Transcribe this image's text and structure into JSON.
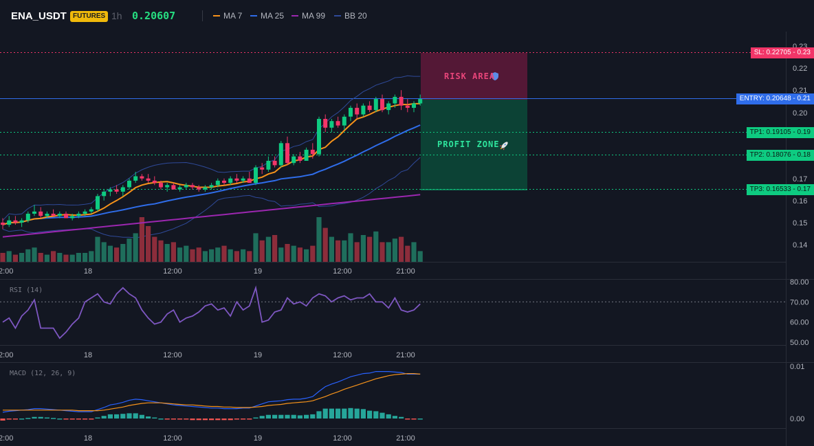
{
  "header": {
    "symbol": "ENA_USDT",
    "badge": "FUTURES",
    "timeframe": "1h",
    "last_price": "0.20607",
    "indicators": [
      {
        "label": "MA 7",
        "color": "#f7931a"
      },
      {
        "label": "MA 25",
        "color": "#2f6dea"
      },
      {
        "label": "MA 99",
        "color": "#9c27b0"
      },
      {
        "label": "BB 20",
        "color": "#2f4a9a"
      }
    ]
  },
  "zones": {
    "risk_label": "RISK AREA",
    "profit_label": "PROFIT ZONE",
    "risk_icon": "shield-icon",
    "profit_icon": "rocket-icon"
  },
  "levels": [
    {
      "label": "SL: 0.22705 - 0.23",
      "value": 0.22705,
      "color": "#f23568",
      "line_style": "dotted"
    },
    {
      "label": "ENTRY: 0.20648 - 0.21",
      "value": 0.20648,
      "color": "#2f6dea",
      "line_style": "solid"
    },
    {
      "label": "TP1: 0.19105 - 0.19",
      "value": 0.19105,
      "color": "#0ecb81",
      "line_style": "dotted"
    },
    {
      "label": "TP2: 0.18076 - 0.18",
      "value": 0.18076,
      "color": "#0ecb81",
      "line_style": "dotted"
    },
    {
      "label": "TP3: 0.16533 - 0.17",
      "value": 0.16533,
      "color": "#0ecb81",
      "line_style": "dotted"
    }
  ],
  "chart_data": [
    {
      "type": "candlestick",
      "title": "ENA_USDT 1h",
      "x_tick_labels": [
        "2:00",
        "18",
        "12:00",
        "19",
        "12:00",
        "21:00"
      ],
      "y_tick_labels": [
        "0.23",
        "0.22",
        "0.21",
        "0.20",
        "0.17",
        "0.16",
        "0.15",
        "0.14"
      ],
      "ylim": [
        0.135,
        0.235
      ],
      "colors": {
        "up": "#0ecb81",
        "down": "#f23568",
        "vol_up": "#1f6e5c",
        "vol_down": "#8c2d3b"
      },
      "ohlc": [
        [
          0.15,
          0.152,
          0.147,
          0.149
        ],
        [
          0.149,
          0.153,
          0.148,
          0.151
        ],
        [
          0.151,
          0.153,
          0.149,
          0.15
        ],
        [
          0.15,
          0.152,
          0.148,
          0.151
        ],
        [
          0.151,
          0.155,
          0.15,
          0.154
        ],
        [
          0.154,
          0.158,
          0.153,
          0.155
        ],
        [
          0.155,
          0.157,
          0.152,
          0.153
        ],
        [
          0.153,
          0.155,
          0.152,
          0.154
        ],
        [
          0.154,
          0.156,
          0.153,
          0.153
        ],
        [
          0.153,
          0.155,
          0.152,
          0.154
        ],
        [
          0.154,
          0.155,
          0.152,
          0.152
        ],
        [
          0.152,
          0.154,
          0.151,
          0.153
        ],
        [
          0.153,
          0.155,
          0.152,
          0.154
        ],
        [
          0.154,
          0.156,
          0.153,
          0.155
        ],
        [
          0.155,
          0.157,
          0.154,
          0.156
        ],
        [
          0.156,
          0.163,
          0.155,
          0.162
        ],
        [
          0.162,
          0.165,
          0.16,
          0.164
        ],
        [
          0.164,
          0.166,
          0.162,
          0.165
        ],
        [
          0.165,
          0.167,
          0.163,
          0.164
        ],
        [
          0.164,
          0.167,
          0.162,
          0.166
        ],
        [
          0.166,
          0.17,
          0.165,
          0.169
        ],
        [
          0.169,
          0.173,
          0.168,
          0.171
        ],
        [
          0.171,
          0.172,
          0.169,
          0.17
        ],
        [
          0.17,
          0.172,
          0.168,
          0.169
        ],
        [
          0.169,
          0.171,
          0.167,
          0.168
        ],
        [
          0.168,
          0.169,
          0.165,
          0.166
        ],
        [
          0.166,
          0.168,
          0.164,
          0.167
        ],
        [
          0.167,
          0.168,
          0.165,
          0.165
        ],
        [
          0.165,
          0.167,
          0.164,
          0.166
        ],
        [
          0.166,
          0.168,
          0.165,
          0.167
        ],
        [
          0.167,
          0.168,
          0.165,
          0.166
        ],
        [
          0.166,
          0.167,
          0.164,
          0.165
        ],
        [
          0.165,
          0.167,
          0.164,
          0.166
        ],
        [
          0.166,
          0.168,
          0.165,
          0.167
        ],
        [
          0.167,
          0.17,
          0.166,
          0.169
        ],
        [
          0.169,
          0.17,
          0.167,
          0.168
        ],
        [
          0.168,
          0.171,
          0.167,
          0.17
        ],
        [
          0.17,
          0.172,
          0.168,
          0.169
        ],
        [
          0.169,
          0.171,
          0.168,
          0.17
        ],
        [
          0.17,
          0.173,
          0.168,
          0.168
        ],
        [
          0.168,
          0.176,
          0.167,
          0.175
        ],
        [
          0.175,
          0.177,
          0.172,
          0.174
        ],
        [
          0.174,
          0.18,
          0.173,
          0.178
        ],
        [
          0.178,
          0.18,
          0.175,
          0.176
        ],
        [
          0.176,
          0.187,
          0.175,
          0.186
        ],
        [
          0.186,
          0.189,
          0.176,
          0.177
        ],
        [
          0.177,
          0.181,
          0.176,
          0.18
        ],
        [
          0.18,
          0.182,
          0.177,
          0.178
        ],
        [
          0.178,
          0.184,
          0.178,
          0.183
        ],
        [
          0.183,
          0.186,
          0.179,
          0.181
        ],
        [
          0.181,
          0.198,
          0.18,
          0.197
        ],
        [
          0.197,
          0.199,
          0.191,
          0.193
        ],
        [
          0.193,
          0.197,
          0.191,
          0.196
        ],
        [
          0.196,
          0.198,
          0.193,
          0.194
        ],
        [
          0.194,
          0.199,
          0.192,
          0.198
        ],
        [
          0.198,
          0.203,
          0.196,
          0.202
        ],
        [
          0.202,
          0.204,
          0.197,
          0.199
        ],
        [
          0.199,
          0.204,
          0.198,
          0.203
        ],
        [
          0.203,
          0.205,
          0.2,
          0.201
        ],
        [
          0.201,
          0.207,
          0.2,
          0.206
        ],
        [
          0.206,
          0.208,
          0.2,
          0.201
        ],
        [
          0.201,
          0.205,
          0.199,
          0.204
        ],
        [
          0.204,
          0.208,
          0.202,
          0.207
        ],
        [
          0.207,
          0.21,
          0.201,
          0.203
        ],
        [
          0.203,
          0.206,
          0.2,
          0.202
        ],
        [
          0.202,
          0.205,
          0.2,
          0.204
        ],
        [
          0.204,
          0.208,
          0.203,
          0.206
        ]
      ],
      "volume": [
        5,
        6,
        4,
        5,
        7,
        8,
        5,
        4,
        6,
        5,
        4,
        4,
        5,
        5,
        6,
        14,
        11,
        9,
        8,
        10,
        13,
        16,
        25,
        20,
        14,
        12,
        10,
        11,
        8,
        9,
        7,
        8,
        6,
        7,
        8,
        9,
        7,
        6,
        7,
        6,
        16,
        12,
        14,
        15,
        8,
        10,
        9,
        8,
        7,
        9,
        25,
        19,
        14,
        12,
        12,
        16,
        11,
        15,
        14,
        17,
        11,
        11,
        13,
        14,
        9,
        11,
        6
      ]
    },
    {
      "type": "line",
      "title": "RSI (14)",
      "x_tick_labels": [
        "2:00",
        "18",
        "12:00",
        "19",
        "12:00",
        "21:00"
      ],
      "y_tick_labels": [
        "80.00",
        "70.00",
        "60.00",
        "50.00"
      ],
      "ylim": [
        48,
        82
      ],
      "reference_line": 70,
      "series": [
        {
          "color": "#7e57c2",
          "values": [
            60,
            62,
            57,
            63,
            66,
            71,
            57,
            57,
            57,
            52,
            55,
            59,
            62,
            70,
            72,
            74,
            70,
            69,
            74,
            77,
            74,
            72,
            66,
            62,
            59,
            60,
            64,
            66,
            60,
            62,
            63,
            65,
            68,
            69,
            66,
            67,
            63,
            70,
            66,
            68,
            77,
            60,
            61,
            65,
            66,
            72,
            69,
            70,
            68,
            72,
            74,
            73,
            70,
            72,
            73,
            71,
            72,
            72,
            74,
            70,
            70,
            67,
            72,
            66,
            65,
            66,
            69
          ]
        }
      ]
    },
    {
      "type": "line",
      "title": "MACD (12, 26, 9)",
      "x_tick_labels": [
        "2:00",
        "18",
        "12:00",
        "19",
        "12:00",
        "21:00"
      ],
      "y_tick_labels": [
        "0.01",
        "0.00"
      ],
      "ylim": [
        -0.002,
        0.0105
      ],
      "series": [
        {
          "color": "#2962ff",
          "values": [
            0.0012,
            0.0014,
            0.0015,
            0.0016,
            0.0017,
            0.0019,
            0.0019,
            0.0018,
            0.0017,
            0.0016,
            0.0015,
            0.0014,
            0.0013,
            0.0013,
            0.0013,
            0.0017,
            0.0021,
            0.0026,
            0.0028,
            0.0031,
            0.0035,
            0.0037,
            0.0036,
            0.0034,
            0.0032,
            0.003,
            0.0028,
            0.0026,
            0.0025,
            0.0024,
            0.0023,
            0.0022,
            0.0021,
            0.002,
            0.002,
            0.0019,
            0.0019,
            0.0019,
            0.002,
            0.002,
            0.0024,
            0.0028,
            0.0032,
            0.0033,
            0.0034,
            0.0036,
            0.0037,
            0.0037,
            0.0039,
            0.0042,
            0.0052,
            0.0061,
            0.0066,
            0.007,
            0.0075,
            0.008,
            0.0083,
            0.0086,
            0.0087,
            0.009,
            0.009,
            0.009,
            0.0089,
            0.0088,
            0.0085,
            0.0085,
            0.0085
          ]
        },
        {
          "color": "#f7931a",
          "values": [
            0.0016,
            0.0016,
            0.0016,
            0.0016,
            0.0016,
            0.0016,
            0.0016,
            0.0016,
            0.0016,
            0.0016,
            0.0016,
            0.0016,
            0.0015,
            0.0015,
            0.0015,
            0.0015,
            0.0016,
            0.0018,
            0.002,
            0.0022,
            0.0025,
            0.0027,
            0.0029,
            0.003,
            0.003,
            0.003,
            0.0029,
            0.0028,
            0.0027,
            0.0026,
            0.0026,
            0.0025,
            0.0024,
            0.0023,
            0.0023,
            0.0022,
            0.0022,
            0.0021,
            0.0021,
            0.0021,
            0.0022,
            0.0023,
            0.0025,
            0.0026,
            0.0027,
            0.0029,
            0.003,
            0.0031,
            0.0032,
            0.0034,
            0.0038,
            0.0042,
            0.0047,
            0.0051,
            0.0056,
            0.006,
            0.0064,
            0.0068,
            0.0072,
            0.0076,
            0.0079,
            0.0082,
            0.0084,
            0.0085,
            0.0086,
            0.0086,
            0.0085
          ]
        }
      ],
      "histogram": [
        -0.0004,
        -0.0002,
        -0.0001,
        0.0,
        0.0001,
        0.0003,
        0.0003,
        0.0002,
        0.0001,
        0.0,
        -0.0001,
        -0.0002,
        -0.0002,
        -0.0002,
        -0.0002,
        0.0002,
        0.0005,
        0.0008,
        0.0008,
        0.0009,
        0.001,
        0.001,
        0.0007,
        0.0004,
        0.0002,
        0.0,
        -0.0001,
        -0.0002,
        -0.0002,
        -0.0002,
        -0.0003,
        -0.0003,
        -0.0003,
        -0.0003,
        -0.0003,
        -0.0003,
        -0.0003,
        -0.0002,
        -0.0001,
        -0.0001,
        0.0002,
        0.0005,
        0.0007,
        0.0007,
        0.0007,
        0.0007,
        0.0007,
        0.0006,
        0.0007,
        0.0008,
        0.0014,
        0.0019,
        0.0019,
        0.0019,
        0.0019,
        0.002,
        0.0019,
        0.0018,
        0.0015,
        0.0014,
        0.0011,
        0.0008,
        0.0005,
        0.0003,
        -0.0001,
        -0.0001,
        0.0
      ]
    }
  ]
}
